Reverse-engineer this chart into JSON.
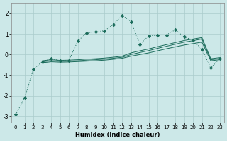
{
  "background_color": "#cce8e8",
  "grid_color": "#aacccc",
  "line_color": "#1a6b5a",
  "xlabel": "Humidex (Indice chaleur)",
  "xlim": [
    -0.5,
    23.5
  ],
  "ylim": [
    -3.3,
    2.5
  ],
  "yticks": [
    -3,
    -2,
    -1,
    0,
    1,
    2
  ],
  "xticks": [
    0,
    1,
    2,
    3,
    4,
    5,
    6,
    7,
    8,
    9,
    10,
    11,
    12,
    13,
    14,
    15,
    16,
    17,
    18,
    19,
    20,
    21,
    22,
    23
  ],
  "s1_x": [
    0,
    1,
    2,
    3,
    4,
    5,
    6,
    7,
    8,
    9,
    10,
    11,
    12,
    13,
    14,
    15,
    16,
    17,
    18,
    19,
    20,
    21,
    22,
    23
  ],
  "s1_y": [
    -2.9,
    -2.1,
    -0.7,
    -0.35,
    -0.2,
    -0.3,
    -0.28,
    0.65,
    1.05,
    1.1,
    1.15,
    1.45,
    1.9,
    1.6,
    0.5,
    0.9,
    0.95,
    0.95,
    1.2,
    0.85,
    0.7,
    0.25,
    -0.65,
    -0.2
  ],
  "s2_x": [
    3,
    4,
    5,
    6,
    7,
    8,
    9,
    10,
    11,
    12,
    13,
    14,
    15,
    16,
    17,
    18,
    19,
    20,
    21,
    22,
    23
  ],
  "s2_y": [
    -0.3,
    -0.25,
    -0.28,
    -0.27,
    -0.25,
    -0.22,
    -0.2,
    -0.17,
    -0.13,
    -0.08,
    0.08,
    0.18,
    0.27,
    0.38,
    0.48,
    0.58,
    0.68,
    0.75,
    0.82,
    -0.2,
    -0.15
  ],
  "s3_x": [
    3,
    4,
    5,
    6,
    7,
    8,
    9,
    10,
    11,
    12,
    13,
    14,
    15,
    16,
    17,
    18,
    19,
    20,
    21,
    22,
    23
  ],
  "s3_y": [
    -0.35,
    -0.3,
    -0.33,
    -0.32,
    -0.3,
    -0.27,
    -0.25,
    -0.22,
    -0.18,
    -0.13,
    0.0,
    0.1,
    0.19,
    0.3,
    0.4,
    0.5,
    0.6,
    0.67,
    0.75,
    -0.25,
    -0.2
  ],
  "s4_x": [
    3,
    4,
    5,
    6,
    7,
    8,
    9,
    10,
    11,
    12,
    13,
    14,
    15,
    16,
    17,
    18,
    19,
    20,
    21,
    22,
    23
  ],
  "s4_y": [
    -0.4,
    -0.35,
    -0.37,
    -0.36,
    -0.34,
    -0.32,
    -0.3,
    -0.27,
    -0.23,
    -0.18,
    -0.08,
    0.0,
    0.08,
    0.18,
    0.28,
    0.37,
    0.46,
    0.53,
    0.6,
    -0.3,
    -0.25
  ]
}
